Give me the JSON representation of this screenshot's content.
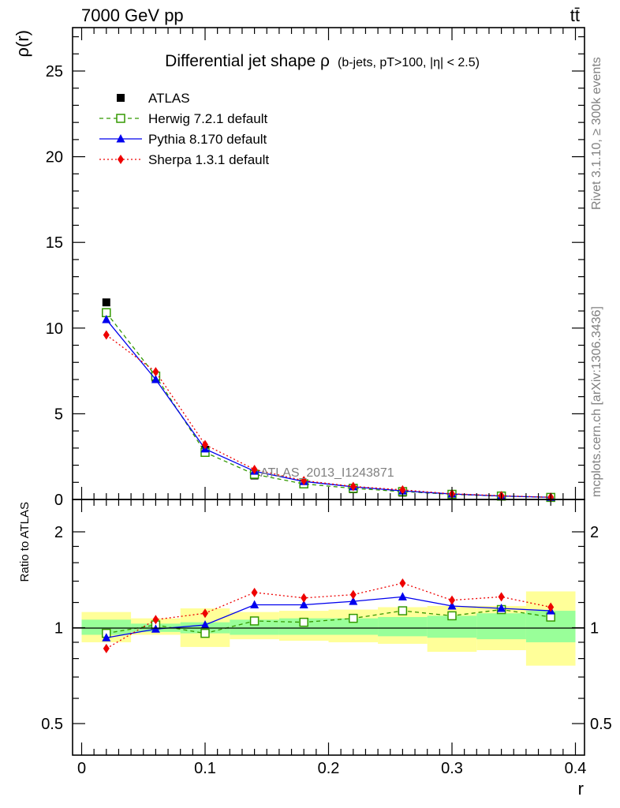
{
  "header": {
    "energy_label": "7000 GeV pp",
    "process_label": "tt̄",
    "title_main": "Differential jet shape ρ",
    "title_detail": "(b-jets, pT>100, |η| < 2.5)"
  },
  "side_text": {
    "rivet": "Rivet 3.1.10, ≥ 300k events",
    "mcplots": "mcplots.cern.ch [arXiv:1306.3436]"
  },
  "watermark": "ATLAS_2013_I1243871",
  "axes": {
    "top_ylabel": "ρ(r)",
    "bottom_ylabel": "Ratio to ATLAS",
    "xlabel": "r"
  },
  "chart_data": [
    {
      "type": "scatter",
      "panel": "main",
      "ylabel": "ρ(r)",
      "xlim": [
        0,
        0.4
      ],
      "ylim": [
        0,
        27.5
      ],
      "yticks": [
        0,
        5,
        10,
        15,
        20,
        25
      ],
      "x": [
        0.02,
        0.06,
        0.1,
        0.14,
        0.18,
        0.22,
        0.26,
        0.3,
        0.34,
        0.38
      ],
      "series": [
        {
          "name": "ATLAS",
          "color": "#000000",
          "marker": "square-filled",
          "line": "none",
          "values": [
            11.5,
            7.1,
            2.9,
            1.4,
            0.88,
            0.6,
            0.4,
            0.27,
            0.17,
            0.11
          ]
        },
        {
          "name": "Herwig 7.2.1 default",
          "color": "#339900",
          "marker": "square-open",
          "line": "dashed",
          "values": [
            10.9,
            7.2,
            2.75,
            1.47,
            0.91,
            0.65,
            0.46,
            0.3,
            0.2,
            0.12
          ]
        },
        {
          "name": "Pythia 8.170 default",
          "color": "#0000ee",
          "marker": "triangle",
          "line": "solid",
          "values": [
            10.5,
            7.0,
            2.95,
            1.65,
            1.05,
            0.74,
            0.5,
            0.32,
            0.2,
            0.125
          ]
        },
        {
          "name": "Sherpa 1.3.1 default",
          "color": "#ee0000",
          "marker": "diamond",
          "line": "dotted",
          "values": [
            9.6,
            7.45,
            3.2,
            1.75,
            1.1,
            0.76,
            0.56,
            0.33,
            0.22,
            0.13
          ]
        }
      ],
      "legend": "top-left"
    },
    {
      "type": "line",
      "panel": "ratio",
      "ylabel": "Ratio to ATLAS",
      "xlabel": "r",
      "xlim": [
        0,
        0.4
      ],
      "ylim": [
        0.4,
        2.4
      ],
      "yscale": "log",
      "xticks": [
        0,
        0.1,
        0.2,
        0.3,
        0.4
      ],
      "yticks": [
        0.5,
        1,
        2
      ],
      "x": [
        0.02,
        0.06,
        0.1,
        0.14,
        0.18,
        0.22,
        0.26,
        0.3,
        0.34,
        0.38
      ],
      "bin_edges": [
        0,
        0.04,
        0.08,
        0.12,
        0.16,
        0.2,
        0.24,
        0.28,
        0.32,
        0.36,
        0.4
      ],
      "bands": {
        "stat_color": "#99ff99",
        "total_color": "#ffff99",
        "stat": [
          [
            0.95,
            1.06
          ],
          [
            0.97,
            1.03
          ],
          [
            0.96,
            1.04
          ],
          [
            0.95,
            1.06
          ],
          [
            0.95,
            1.07
          ],
          [
            0.95,
            1.07
          ],
          [
            0.94,
            1.08
          ],
          [
            0.93,
            1.09
          ],
          [
            0.92,
            1.11
          ],
          [
            0.9,
            1.13
          ]
        ],
        "total": [
          [
            0.9,
            1.12
          ],
          [
            0.95,
            1.07
          ],
          [
            0.87,
            1.15
          ],
          [
            0.92,
            1.12
          ],
          [
            0.91,
            1.13
          ],
          [
            0.9,
            1.14
          ],
          [
            0.89,
            1.16
          ],
          [
            0.84,
            1.17
          ],
          [
            0.85,
            1.17
          ],
          [
            0.76,
            1.3
          ]
        ]
      },
      "series": [
        {
          "name": "Herwig 7.2.1 default",
          "color": "#339900",
          "marker": "square-open",
          "line": "dashed",
          "values": [
            0.96,
            1.02,
            0.96,
            1.05,
            1.04,
            1.07,
            1.13,
            1.09,
            1.14,
            1.08
          ]
        },
        {
          "name": "Pythia 8.170 default",
          "color": "#0000ee",
          "marker": "triangle",
          "line": "solid",
          "values": [
            0.93,
            0.99,
            1.02,
            1.18,
            1.18,
            1.21,
            1.25,
            1.17,
            1.15,
            1.13
          ]
        },
        {
          "name": "Sherpa 1.3.1 default",
          "color": "#ee0000",
          "marker": "diamond",
          "line": "dotted",
          "values": [
            0.86,
            1.06,
            1.11,
            1.29,
            1.24,
            1.27,
            1.38,
            1.22,
            1.25,
            1.16
          ]
        }
      ]
    }
  ]
}
